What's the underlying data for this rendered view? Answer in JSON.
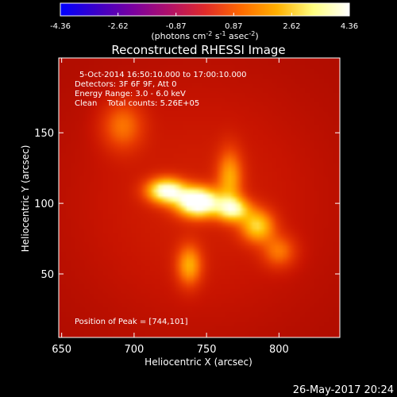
{
  "chart_data": {
    "type": "heatmap",
    "title": "Reconstructed RHESSI Image",
    "colorbar": {
      "ticks": [
        "-4.36",
        "-2.62",
        "-0.87",
        "0.87",
        "2.62",
        "4.36"
      ],
      "range": [
        -4.36,
        4.36
      ],
      "units_prefix": "(photons cm",
      "units_exp1": "-2",
      "units_mid": " s",
      "units_exp2": "-1",
      "units_mid2": " asec",
      "units_exp3": "-2",
      "units_suffix": ")",
      "colormap": [
        "#0000ff",
        "#3b00c8",
        "#7a00a0",
        "#b0106a",
        "#e02a2a",
        "#ff6a00",
        "#ffb000",
        "#ffff80",
        "#ffffff"
      ]
    },
    "annotations": {
      "line1": "5-Oct-2014 16:50:10.000 to 17:00:10.000",
      "line2": "Detectors: 3F 6F 9F, Att 0",
      "line3": "Energy Range: 3.0 - 6.0 keV",
      "line4": "Clean    Total counts: 5.26E+05",
      "peak": "Position of Peak = [744,101]"
    },
    "xlabel": "Heliocentric X (arcsec)",
    "ylabel": "Heliocentric Y (arcsec)",
    "x_ticks": [
      "650",
      "700",
      "750",
      "800"
    ],
    "y_ticks": [
      "50",
      "100",
      "150"
    ],
    "x_tick_values": [
      650,
      700,
      750,
      800
    ],
    "y_tick_values": [
      50,
      100,
      150
    ],
    "xlim": [
      648,
      842
    ],
    "ylim": [
      5,
      203
    ],
    "peak": [
      744,
      101
    ],
    "sources": [
      {
        "x": 744,
        "y": 101,
        "sigma_x": 10,
        "sigma_y": 7,
        "amp": 1.0
      },
      {
        "x": 722,
        "y": 109,
        "sigma_x": 9,
        "sigma_y": 6,
        "amp": 0.78
      },
      {
        "x": 768,
        "y": 96,
        "sigma_x": 8,
        "sigma_y": 6,
        "amp": 0.6
      },
      {
        "x": 785,
        "y": 84,
        "sigma_x": 8,
        "sigma_y": 8,
        "amp": 0.5
      },
      {
        "x": 738,
        "y": 56,
        "sigma_x": 6,
        "sigma_y": 10,
        "amp": 0.4
      },
      {
        "x": 766,
        "y": 118,
        "sigma_x": 6,
        "sigma_y": 14,
        "amp": 0.38
      },
      {
        "x": 692,
        "y": 155,
        "sigma_x": 10,
        "sigma_y": 12,
        "amp": 0.28
      },
      {
        "x": 800,
        "y": 66,
        "sigma_x": 8,
        "sigma_y": 8,
        "amp": 0.28
      }
    ],
    "background_level": 0.18,
    "grid": false
  },
  "footer": {
    "timestamp": "26-May-2017 20:24"
  }
}
